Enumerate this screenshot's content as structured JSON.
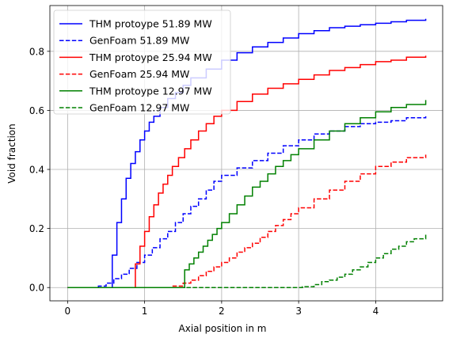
{
  "chart_data": {
    "type": "line",
    "step": true,
    "xlabel": "Axial position in m",
    "ylabel": "Void fraction",
    "xlim": [
      -0.23,
      4.87
    ],
    "ylim": [
      -0.045,
      0.955
    ],
    "xticks": [
      0,
      1,
      2,
      3,
      4
    ],
    "yticks": [
      0.0,
      0.2,
      0.4,
      0.6,
      0.8
    ],
    "ytick_labels": [
      "0.0",
      "0.2",
      "0.4",
      "0.6",
      "0.8"
    ],
    "grid": true,
    "legend_position": "top-left",
    "series": [
      {
        "name": "THM protoype 51.89 MW",
        "color": "#0000ff",
        "style": "solid",
        "points": [
          [
            0,
            0
          ],
          [
            0.58,
            0
          ],
          [
            0.58,
            0.11
          ],
          [
            0.64,
            0.22
          ],
          [
            0.7,
            0.3
          ],
          [
            0.76,
            0.37
          ],
          [
            0.82,
            0.42
          ],
          [
            0.88,
            0.46
          ],
          [
            0.94,
            0.5
          ],
          [
            1.0,
            0.53
          ],
          [
            1.06,
            0.56
          ],
          [
            1.12,
            0.58
          ],
          [
            1.2,
            0.61
          ],
          [
            1.3,
            0.64
          ],
          [
            1.4,
            0.66
          ],
          [
            1.5,
            0.685
          ],
          [
            1.6,
            0.71
          ],
          [
            1.8,
            0.74
          ],
          [
            2.0,
            0.77
          ],
          [
            2.2,
            0.795
          ],
          [
            2.4,
            0.815
          ],
          [
            2.6,
            0.83
          ],
          [
            2.8,
            0.845
          ],
          [
            3.0,
            0.86
          ],
          [
            3.2,
            0.87
          ],
          [
            3.4,
            0.88
          ],
          [
            3.6,
            0.885
          ],
          [
            3.8,
            0.89
          ],
          [
            4.0,
            0.895
          ],
          [
            4.2,
            0.9
          ],
          [
            4.4,
            0.905
          ],
          [
            4.65,
            0.91
          ]
        ]
      },
      {
        "name": "GenFoam 51.89 MW",
        "color": "#0000ff",
        "style": "dashed",
        "points": [
          [
            0,
            0
          ],
          [
            0.3,
            0
          ],
          [
            0.4,
            0.005
          ],
          [
            0.5,
            0.015
          ],
          [
            0.6,
            0.03
          ],
          [
            0.7,
            0.045
          ],
          [
            0.8,
            0.065
          ],
          [
            0.9,
            0.085
          ],
          [
            1.0,
            0.11
          ],
          [
            1.1,
            0.135
          ],
          [
            1.2,
            0.165
          ],
          [
            1.3,
            0.19
          ],
          [
            1.4,
            0.22
          ],
          [
            1.5,
            0.25
          ],
          [
            1.6,
            0.275
          ],
          [
            1.7,
            0.3
          ],
          [
            1.8,
            0.33
          ],
          [
            1.9,
            0.36
          ],
          [
            2.0,
            0.38
          ],
          [
            2.2,
            0.405
          ],
          [
            2.4,
            0.43
          ],
          [
            2.6,
            0.455
          ],
          [
            2.8,
            0.48
          ],
          [
            3.0,
            0.5
          ],
          [
            3.2,
            0.52
          ],
          [
            3.4,
            0.53
          ],
          [
            3.6,
            0.545
          ],
          [
            3.8,
            0.555
          ],
          [
            4.0,
            0.56
          ],
          [
            4.2,
            0.565
          ],
          [
            4.4,
            0.575
          ],
          [
            4.65,
            0.58
          ]
        ]
      },
      {
        "name": "THM protoype 25.94 MW",
        "color": "#ff0000",
        "style": "solid",
        "points": [
          [
            0,
            0
          ],
          [
            0.88,
            0
          ],
          [
            0.88,
            0.08
          ],
          [
            0.94,
            0.14
          ],
          [
            1.0,
            0.19
          ],
          [
            1.06,
            0.24
          ],
          [
            1.12,
            0.28
          ],
          [
            1.18,
            0.32
          ],
          [
            1.24,
            0.35
          ],
          [
            1.3,
            0.38
          ],
          [
            1.36,
            0.41
          ],
          [
            1.44,
            0.44
          ],
          [
            1.52,
            0.47
          ],
          [
            1.6,
            0.5
          ],
          [
            1.7,
            0.53
          ],
          [
            1.8,
            0.555
          ],
          [
            1.9,
            0.58
          ],
          [
            2.0,
            0.6
          ],
          [
            2.2,
            0.63
          ],
          [
            2.4,
            0.655
          ],
          [
            2.6,
            0.675
          ],
          [
            2.8,
            0.69
          ],
          [
            3.0,
            0.705
          ],
          [
            3.2,
            0.72
          ],
          [
            3.4,
            0.735
          ],
          [
            3.6,
            0.745
          ],
          [
            3.8,
            0.755
          ],
          [
            4.0,
            0.765
          ],
          [
            4.2,
            0.77
          ],
          [
            4.4,
            0.78
          ],
          [
            4.65,
            0.785
          ]
        ]
      },
      {
        "name": "GenFoam 25.94 MW",
        "color": "#ff0000",
        "style": "dashed",
        "points": [
          [
            0,
            0
          ],
          [
            1.25,
            0
          ],
          [
            1.35,
            0.005
          ],
          [
            1.5,
            0.015
          ],
          [
            1.6,
            0.025
          ],
          [
            1.7,
            0.04
          ],
          [
            1.8,
            0.055
          ],
          [
            1.9,
            0.07
          ],
          [
            2.0,
            0.085
          ],
          [
            2.1,
            0.1
          ],
          [
            2.2,
            0.12
          ],
          [
            2.3,
            0.135
          ],
          [
            2.4,
            0.15
          ],
          [
            2.5,
            0.17
          ],
          [
            2.6,
            0.19
          ],
          [
            2.7,
            0.21
          ],
          [
            2.8,
            0.23
          ],
          [
            2.9,
            0.25
          ],
          [
            3.0,
            0.27
          ],
          [
            3.2,
            0.3
          ],
          [
            3.4,
            0.33
          ],
          [
            3.6,
            0.36
          ],
          [
            3.8,
            0.385
          ],
          [
            4.0,
            0.41
          ],
          [
            4.2,
            0.425
          ],
          [
            4.4,
            0.44
          ],
          [
            4.65,
            0.45
          ]
        ]
      },
      {
        "name": "THM protoype 12.97 MW",
        "color": "#008000",
        "style": "solid",
        "points": [
          [
            0,
            0
          ],
          [
            1.52,
            0
          ],
          [
            1.52,
            0.06
          ],
          [
            1.58,
            0.08
          ],
          [
            1.64,
            0.1
          ],
          [
            1.7,
            0.12
          ],
          [
            1.76,
            0.14
          ],
          [
            1.82,
            0.16
          ],
          [
            1.88,
            0.18
          ],
          [
            1.94,
            0.2
          ],
          [
            2.0,
            0.22
          ],
          [
            2.1,
            0.25
          ],
          [
            2.2,
            0.28
          ],
          [
            2.3,
            0.31
          ],
          [
            2.4,
            0.34
          ],
          [
            2.5,
            0.36
          ],
          [
            2.6,
            0.385
          ],
          [
            2.7,
            0.41
          ],
          [
            2.8,
            0.43
          ],
          [
            2.9,
            0.45
          ],
          [
            3.0,
            0.47
          ],
          [
            3.2,
            0.5
          ],
          [
            3.4,
            0.53
          ],
          [
            3.6,
            0.555
          ],
          [
            3.8,
            0.575
          ],
          [
            4.0,
            0.595
          ],
          [
            4.2,
            0.61
          ],
          [
            4.4,
            0.62
          ],
          [
            4.65,
            0.635
          ]
        ]
      },
      {
        "name": "GenFoam 12.97 MW",
        "color": "#008000",
        "style": "dashed",
        "points": [
          [
            0,
            0
          ],
          [
            2.95,
            0
          ],
          [
            3.05,
            0.003
          ],
          [
            3.2,
            0.01
          ],
          [
            3.3,
            0.02
          ],
          [
            3.4,
            0.025
          ],
          [
            3.5,
            0.035
          ],
          [
            3.6,
            0.045
          ],
          [
            3.7,
            0.06
          ],
          [
            3.8,
            0.07
          ],
          [
            3.9,
            0.085
          ],
          [
            4.0,
            0.1
          ],
          [
            4.1,
            0.115
          ],
          [
            4.2,
            0.13
          ],
          [
            4.3,
            0.14
          ],
          [
            4.4,
            0.155
          ],
          [
            4.5,
            0.165
          ],
          [
            4.65,
            0.18
          ]
        ]
      }
    ]
  }
}
